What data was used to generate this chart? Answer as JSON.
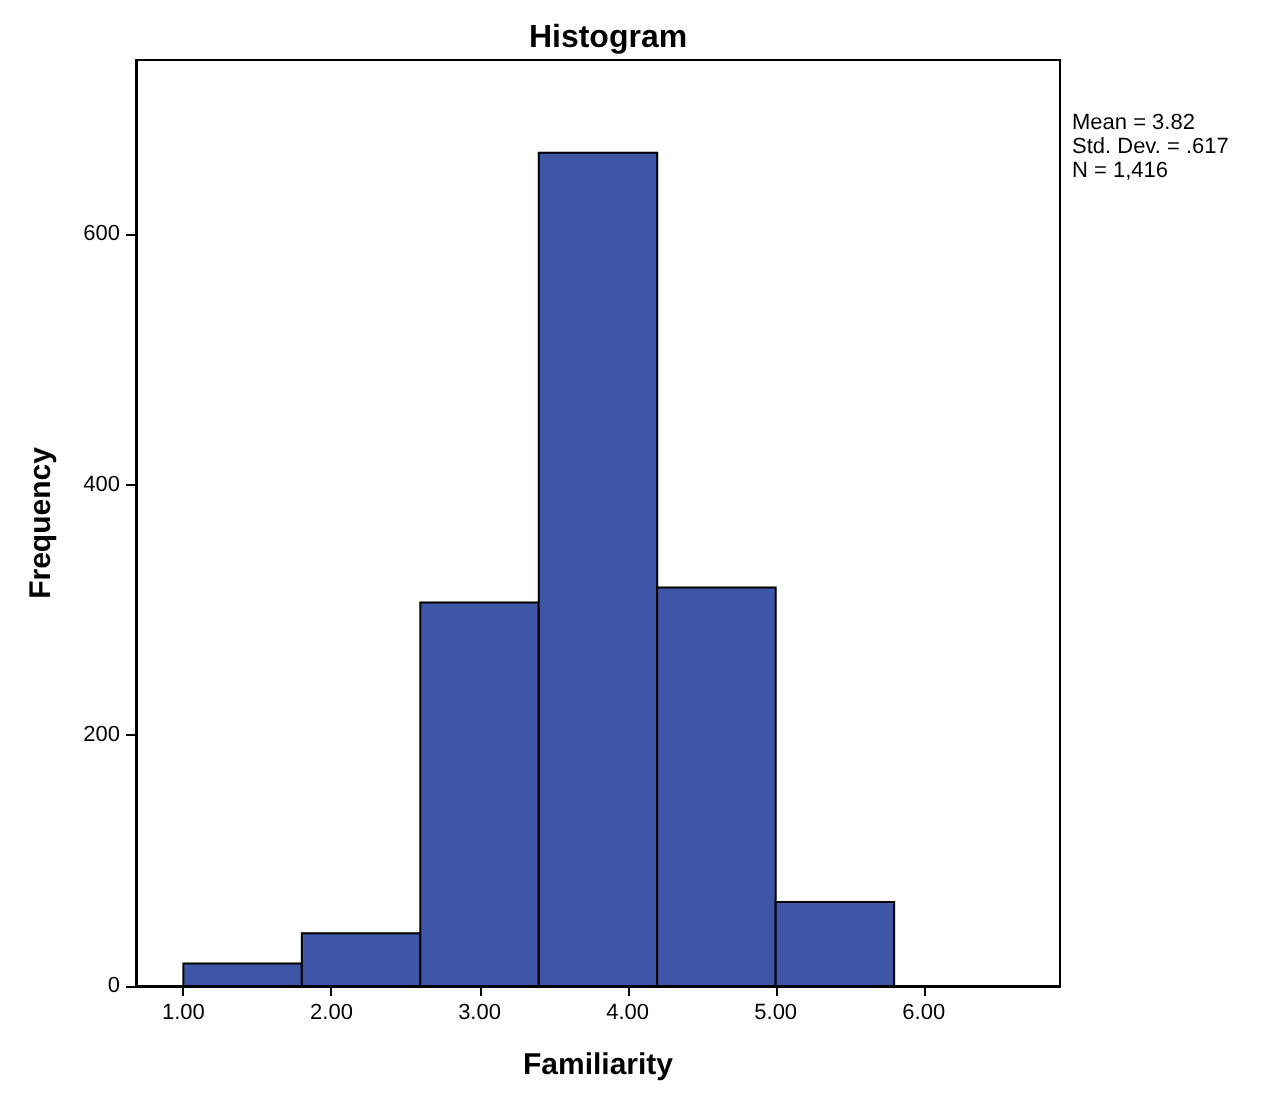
{
  "chart_data": {
    "type": "histogram",
    "title": "Histogram",
    "xlabel": "Familiarity",
    "ylabel": "Frequency",
    "bins": [
      1.0,
      1.8,
      2.6,
      3.4,
      4.2,
      5.0,
      5.8
    ],
    "values": [
      18,
      42,
      306,
      665,
      318,
      67
    ],
    "color": "#3f56a8",
    "xlim": [
      0.68,
      6.92
    ],
    "xticks": [
      {
        "value": 1,
        "label": "1.00"
      },
      {
        "value": 2,
        "label": "2.00"
      },
      {
        "value": 3,
        "label": "3.00"
      },
      {
        "value": 4,
        "label": "4.00"
      },
      {
        "value": 5,
        "label": "5.00"
      },
      {
        "value": 6,
        "label": "6.00"
      }
    ],
    "ylim": [
      0,
      739
    ],
    "yticks": [
      0,
      200,
      400,
      600
    ],
    "annotations": [
      "Mean = 3.82",
      "Std. Dev. = .617",
      "N = 1,416"
    ]
  }
}
